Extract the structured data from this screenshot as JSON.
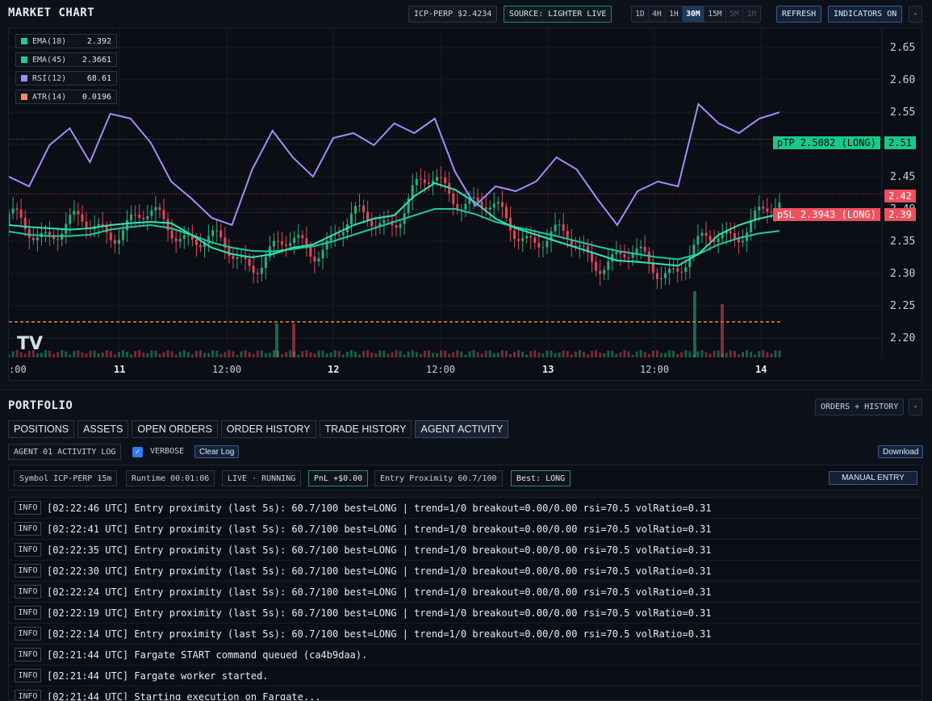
{
  "chart_header": {
    "title": "MARKET CHART",
    "symbol_price": "ICP-PERP  $2.4234",
    "source": "SOURCE: LIGHTER LIVE",
    "timeframes": [
      "1D",
      "4H",
      "1H",
      "30M",
      "15M",
      "5M",
      "1M"
    ],
    "active_timeframe": "30M",
    "refresh_label": "REFRESH",
    "indicators_label": "INDICATORS ON",
    "collapse_label": "-"
  },
  "legend": [
    {
      "name": "EMA(18)",
      "value": "2.392",
      "color": "#1fc9a0"
    },
    {
      "name": "EMA(45)",
      "value": "2.3661",
      "color": "#1fc9a0"
    },
    {
      "name": "RSI(12)",
      "value": "68.61",
      "color": "#a78bfa"
    },
    {
      "name": "ATR(14)",
      "value": "0.0196",
      "color": "#f08a5d"
    }
  ],
  "chart_data": {
    "type": "candlestick",
    "symbol": "ICP-PERP",
    "ylim": [
      2.17,
      2.68
    ],
    "y_ticks": [
      2.2,
      2.25,
      2.3,
      2.35,
      2.4,
      2.45,
      2.5,
      2.55,
      2.6,
      2.65
    ],
    "x_tick_labels": [
      ":00",
      "11",
      "12:00",
      "12",
      "12:00",
      "13",
      "12:00",
      "14"
    ],
    "last_price": "2.42",
    "take_profit": {
      "label": "pTP 2.5082 (LONG)",
      "value": 2.5082,
      "axis_label": "2.51"
    },
    "stop_loss": {
      "label": "pSL 2.3943 (LONG)",
      "value": 2.3943,
      "axis_label": "2.39"
    },
    "support_level": 2.225,
    "series": [
      {
        "name": "EMA(18)",
        "values": [
          2.375,
          2.372,
          2.37,
          2.368,
          2.37,
          2.375,
          2.378,
          2.38,
          2.378,
          2.36,
          2.34,
          2.33,
          2.325,
          2.33,
          2.34,
          2.345,
          2.36,
          2.375,
          2.385,
          2.39,
          2.42,
          2.44,
          2.43,
          2.41,
          2.385,
          2.37,
          2.36,
          2.35,
          2.34,
          2.33,
          2.32,
          2.318,
          2.315,
          2.312,
          2.33,
          2.36,
          2.375,
          2.385,
          2.392
        ]
      },
      {
        "name": "EMA(45)",
        "values": [
          2.365,
          2.36,
          2.358,
          2.358,
          2.36,
          2.368,
          2.372,
          2.375,
          2.37,
          2.36,
          2.348,
          2.34,
          2.335,
          2.334,
          2.338,
          2.342,
          2.35,
          2.36,
          2.37,
          2.38,
          2.39,
          2.4,
          2.4,
          2.392,
          2.38,
          2.372,
          2.365,
          2.358,
          2.35,
          2.342,
          2.335,
          2.33,
          2.325,
          2.322,
          2.33,
          2.345,
          2.355,
          2.362,
          2.366
        ]
      },
      {
        "name": "RSI(12)",
        "values": [
          42,
          38,
          55,
          62,
          48,
          68,
          66,
          56,
          40,
          33,
          25,
          22,
          45,
          61,
          50,
          42,
          58,
          60,
          55,
          64,
          60,
          66,
          44,
          30,
          38,
          36,
          40,
          50,
          45,
          33,
          22,
          36,
          40,
          38,
          72,
          64,
          60,
          66,
          68.61
        ]
      }
    ],
    "volume_spikes": [
      "2.3 area",
      "2.29 area"
    ],
    "indicator_overlay": "RSI(12) scaled in-pane"
  },
  "portfolio": {
    "title": "PORTFOLIO",
    "orders_history_label": "ORDERS + HISTORY",
    "collapse_label": "-",
    "tabs": [
      "POSITIONS",
      "ASSETS",
      "OPEN ORDERS",
      "ORDER HISTORY",
      "TRADE HISTORY",
      "AGENT ACTIVITY"
    ],
    "active_tab": "AGENT ACTIVITY",
    "log_title": "AGENT 01 ACTIVITY LOG",
    "verbose_label": "VERBOSE",
    "verbose_checked": true,
    "clear_log_label": "Clear Log",
    "download_label": "Download",
    "status": {
      "symbol": "Symbol ICP-PERP 15m",
      "runtime": "Runtime 00:01:06",
      "state": "LIVE · RUNNING",
      "pnl": "PnL +$0.00",
      "proximity": "Entry Proximity 60.7/100",
      "best": "Best: LONG",
      "manual_entry_label": "MANUAL ENTRY"
    },
    "log_entries": [
      {
        "level": "INFO",
        "message": "[02:22:46 UTC] Entry proximity (last 5s): 60.7/100 best=LONG | trend=1/0 breakout=0.00/0.00 rsi=70.5 volRatio=0.31"
      },
      {
        "level": "INFO",
        "message": "[02:22:41 UTC] Entry proximity (last 5s): 60.7/100 best=LONG | trend=1/0 breakout=0.00/0.00 rsi=70.5 volRatio=0.31"
      },
      {
        "level": "INFO",
        "message": "[02:22:35 UTC] Entry proximity (last 5s): 60.7/100 best=LONG | trend=1/0 breakout=0.00/0.00 rsi=70.5 volRatio=0.31"
      },
      {
        "level": "INFO",
        "message": "[02:22:30 UTC] Entry proximity (last 5s): 60.7/100 best=LONG | trend=1/0 breakout=0.00/0.00 rsi=70.5 volRatio=0.31"
      },
      {
        "level": "INFO",
        "message": "[02:22:24 UTC] Entry proximity (last 5s): 60.7/100 best=LONG | trend=1/0 breakout=0.00/0.00 rsi=70.5 volRatio=0.31"
      },
      {
        "level": "INFO",
        "message": "[02:22:19 UTC] Entry proximity (last 5s): 60.7/100 best=LONG | trend=1/0 breakout=0.00/0.00 rsi=70.5 volRatio=0.31"
      },
      {
        "level": "INFO",
        "message": "[02:22:14 UTC] Entry proximity (last 5s): 60.7/100 best=LONG | trend=1/0 breakout=0.00/0.00 rsi=70.5 volRatio=0.31"
      },
      {
        "level": "INFO",
        "message": "[02:21:44 UTC] Fargate START command queued (ca4b9daa)."
      },
      {
        "level": "INFO",
        "message": "[02:21:44 UTC] Fargate worker started."
      },
      {
        "level": "INFO",
        "message": "[02:21:44 UTC] Starting execution on Fargate..."
      }
    ]
  }
}
